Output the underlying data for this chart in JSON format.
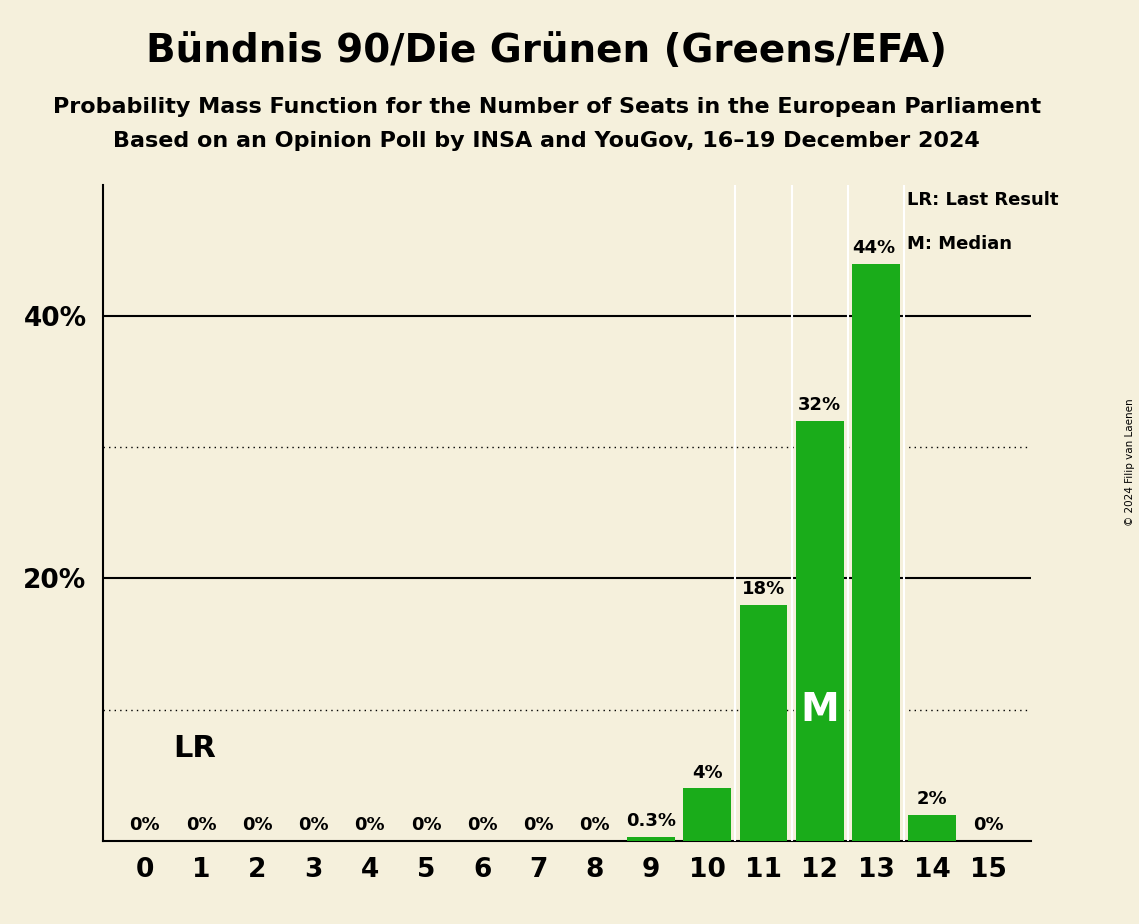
{
  "title": "Bündnis 90/Die Grünen (Greens/EFA)",
  "subtitle1": "Probability Mass Function for the Number of Seats in the European Parliament",
  "subtitle2": "Based on an Opinion Poll by INSA and YouGov, 16–19 December 2024",
  "copyright": "© 2024 Filip van Laenen",
  "categories": [
    0,
    1,
    2,
    3,
    4,
    5,
    6,
    7,
    8,
    9,
    10,
    11,
    12,
    13,
    14,
    15
  ],
  "values": [
    0,
    0,
    0,
    0,
    0,
    0,
    0,
    0,
    0,
    0.3,
    4,
    18,
    32,
    44,
    2,
    0
  ],
  "bar_color": "#1aac1a",
  "background_color": "#f5f0dc",
  "label_texts": [
    "0%",
    "0%",
    "0%",
    "0%",
    "0%",
    "0%",
    "0%",
    "0%",
    "0%",
    "0.3%",
    "4%",
    "18%",
    "32%",
    "44%",
    "2%",
    "0%"
  ],
  "last_result_seat": 13,
  "median_seat": 12,
  "ylim": [
    0,
    50
  ],
  "solid_yticks": [
    20,
    40
  ],
  "dotted_yticks": [
    10,
    30
  ],
  "legend_lr": "LR: Last Result",
  "legend_m": "M: Median",
  "lr_label": "LR",
  "m_label": "M",
  "label_fontsize": 13,
  "tick_fontsize": 19,
  "title_fontsize": 28,
  "subtitle_fontsize": 16
}
